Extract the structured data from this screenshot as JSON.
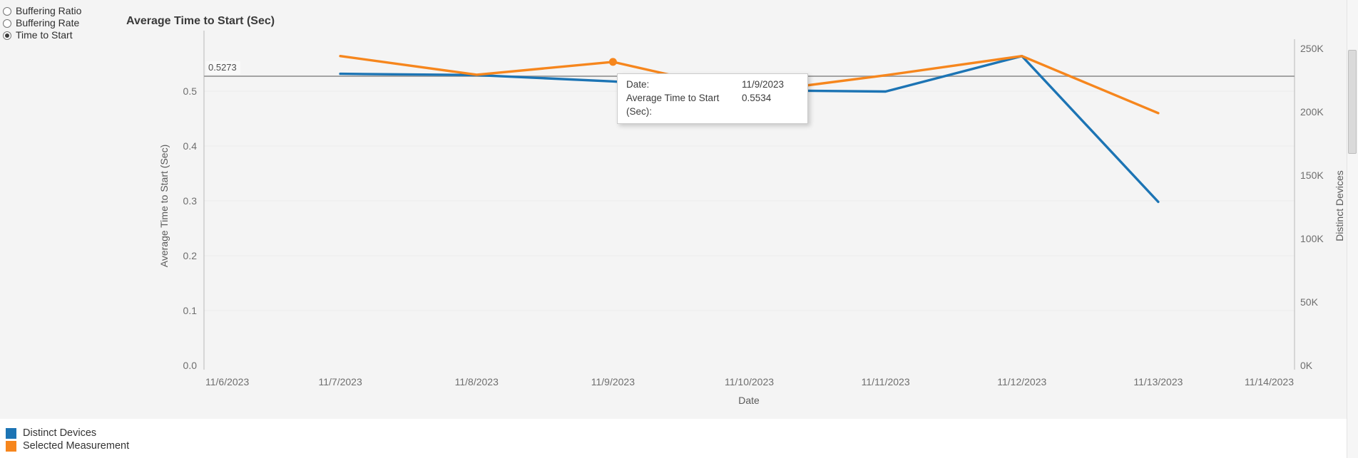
{
  "radio_group": {
    "options": [
      {
        "label": "Buffering Ratio",
        "selected": false
      },
      {
        "label": "Buffering Rate",
        "selected": false
      },
      {
        "label": "Time to Start",
        "selected": true
      }
    ]
  },
  "chart": {
    "title": "Average Time to Start (Sec)"
  },
  "tooltip": {
    "date_label": "Date:",
    "date_value": "11/9/2023",
    "measure_label": "Average Time to Start (Sec):",
    "measure_value": "0.5534"
  },
  "reference_line": {
    "label": "0.5273",
    "value": 0.5273
  },
  "legend": [
    {
      "label": "Distinct Devices",
      "color": "#1c74b4"
    },
    {
      "label": "Selected Measurement",
      "color": "#f6861d"
    }
  ],
  "colors": {
    "distinct_devices": "#1c74b4",
    "selected_measurement": "#f6861d",
    "reference_line": "#a3a3a3",
    "axis_line": "#c9c9c9",
    "gridline": "#ebebeb"
  },
  "chart_data": {
    "type": "line",
    "title": "Average Time to Start (Sec)",
    "x": [
      "11/6/2023",
      "11/7/2023",
      "11/8/2023",
      "11/9/2023",
      "11/10/2023",
      "11/11/2023",
      "11/12/2023",
      "11/13/2023",
      "11/14/2023"
    ],
    "xlabel": "Date",
    "series": [
      {
        "name": "Distinct Devices",
        "axis": "right",
        "color": "#1c74b4",
        "start_index": 1,
        "x": [
          "11/7/2023",
          "11/8/2023",
          "11/9/2023",
          "11/10/2023",
          "11/11/2023",
          "11/12/2023",
          "11/13/2023"
        ],
        "values": [
          230000,
          229000,
          224000,
          217000,
          216000,
          244000,
          129000
        ]
      },
      {
        "name": "Selected Measurement",
        "axis": "left",
        "color": "#f6861d",
        "start_index": 1,
        "x": [
          "11/7/2023",
          "11/8/2023",
          "11/9/2023",
          "11/10/2023",
          "11/11/2023",
          "11/12/2023",
          "11/13/2023"
        ],
        "values": [
          0.564,
          0.53,
          0.5534,
          0.497,
          0.529,
          0.564,
          0.46
        ]
      }
    ],
    "left_axis": {
      "label": "Average Time to Start (Sec)",
      "ticks": [
        "0.0",
        "0.1",
        "0.2",
        "0.3",
        "0.4",
        "0.5"
      ],
      "tick_values": [
        0,
        0.1,
        0.2,
        0.3,
        0.4,
        0.5
      ],
      "range": [
        0,
        0.595
      ]
    },
    "right_axis": {
      "label": "Distinct Devices",
      "ticks": [
        "0K",
        "50K",
        "100K",
        "150K",
        "200K",
        "250K"
      ],
      "tick_values": [
        0,
        50000,
        100000,
        150000,
        200000,
        250000
      ],
      "range": [
        0,
        257000
      ]
    },
    "reference_line": 0.5273,
    "highlight_point": {
      "series": "Selected Measurement",
      "x": "11/9/2023",
      "value": 0.5534
    },
    "legend_position": "bottom-left",
    "grid": "horizontal-faint"
  }
}
